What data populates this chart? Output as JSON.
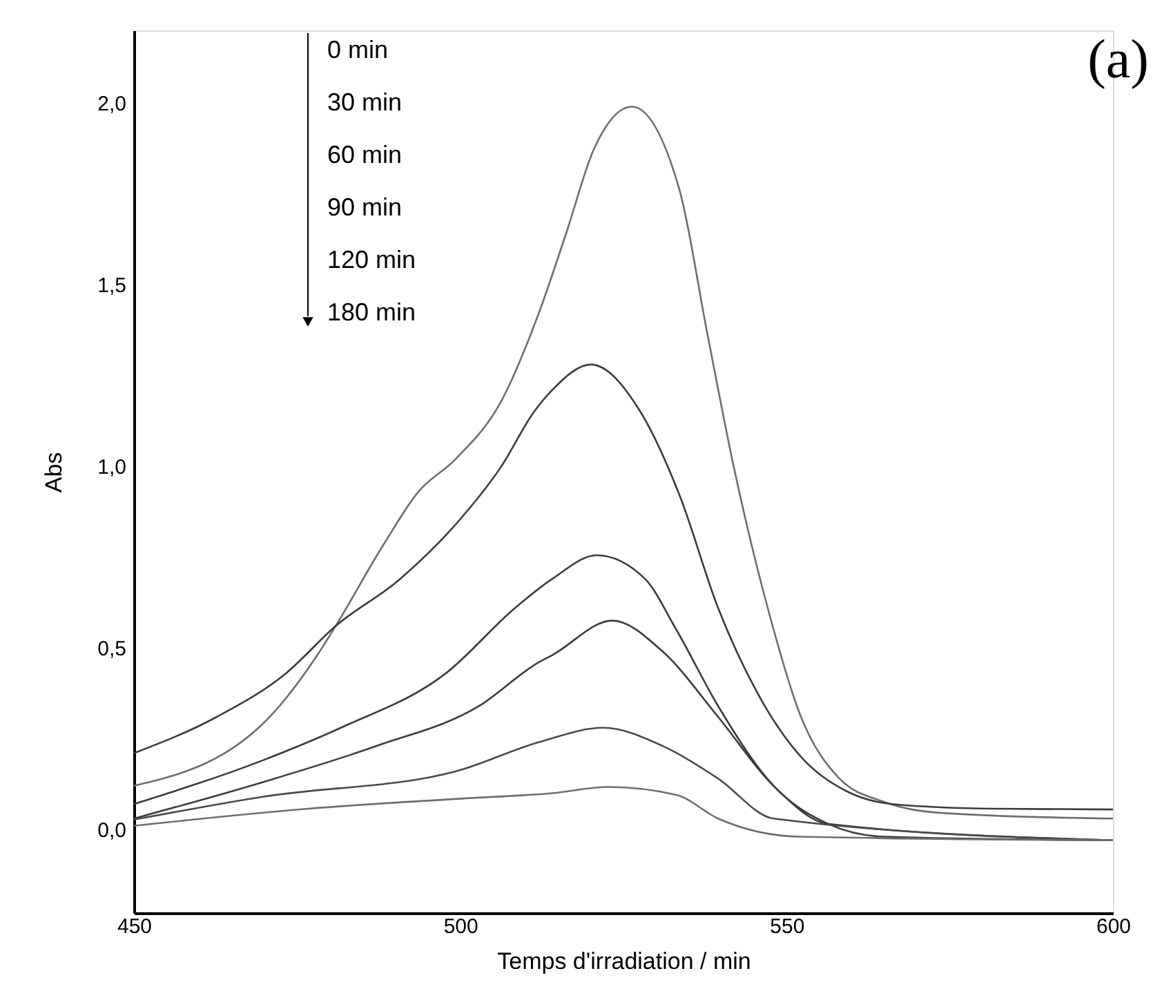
{
  "chart_data": {
    "type": "line",
    "title": "(a)",
    "xlabel": "Temps d'irradiation / min",
    "ylabel": "Abs",
    "annotations": [
      "0 min",
      "30 min",
      "60 min",
      "90 min",
      "120 min",
      "180 min"
    ],
    "xlim": [
      450,
      600
    ],
    "ylim": [
      -0.23,
      2.2
    ],
    "xticks": [
      450,
      500,
      550,
      600
    ],
    "yticks": [
      {
        "value": 0,
        "label": "0,0"
      },
      {
        "value": 0.5,
        "label": "0,5"
      },
      {
        "value": 1.0,
        "label": "1,0"
      },
      {
        "value": 1.5,
        "label": "1,5"
      },
      {
        "value": 2.0,
        "label": "2,0"
      }
    ],
    "grid": false,
    "series": [
      {
        "color": "#6e6e6e",
        "x": [
          450,
          469.7,
          478.1,
          480.9,
          488.1,
          493.6,
          499.3,
          506.3,
          512,
          516.2,
          520.4,
          526.3,
          533.6,
          537.8,
          542,
          547.1,
          552.2,
          558.1,
          564.9,
          573.3,
          600
        ],
        "values": [
          0.12,
          0.29,
          0.48,
          0.56,
          0.78,
          0.93,
          1.02,
          1.18,
          1.42,
          1.64,
          1.87,
          1.99,
          1.76,
          1.37,
          0.99,
          0.61,
          0.31,
          0.14,
          0.076,
          0.046,
          0.03
        ]
      },
      {
        "color": "#3c3c3c",
        "x": [
          450,
          462.7,
          473.3,
          480.9,
          490.8,
          499.3,
          506.3,
          511.3,
          514.1,
          520,
          527.6,
          533.6,
          539.5,
          545.4,
          552.2,
          559,
          566.6,
          581.8,
          600
        ],
        "values": [
          0.21,
          0.31,
          0.43,
          0.56,
          0.69,
          0.84,
          1.0,
          1.15,
          1.21,
          1.28,
          1.15,
          0.92,
          0.61,
          0.38,
          0.2,
          0.107,
          0.069,
          0.057,
          0.055
        ]
      },
      {
        "color": "#3c3c3c",
        "x": [
          450,
          469.7,
          481.7,
          497.8,
          508.4,
          514.1,
          520.9,
          528.3,
          533.1,
          539.5,
          548,
          556.4,
          564.9,
          600
        ],
        "values": [
          0.07,
          0.19,
          0.28,
          0.43,
          0.61,
          0.69,
          0.755,
          0.69,
          0.55,
          0.34,
          0.12,
          0.015,
          -0.02,
          -0.03
        ]
      },
      {
        "color": "#3c3c3c",
        "x": [
          450,
          469.7,
          487.2,
          502.9,
          512,
          514.1,
          523.3,
          531,
          539.5,
          548,
          556.4,
          600
        ],
        "values": [
          0.03,
          0.13,
          0.23,
          0.34,
          0.46,
          0.48,
          0.575,
          0.49,
          0.31,
          0.12,
          0.015,
          -0.03
        ]
      },
      {
        "color": "#4a4a4a",
        "x": [
          450,
          469.7,
          499.3,
          512,
          521.9,
          531,
          539.5,
          548,
          600
        ],
        "values": [
          0.027,
          0.09,
          0.16,
          0.24,
          0.28,
          0.23,
          0.14,
          0.03,
          -0.03
        ]
      },
      {
        "color": "#6e6e6e",
        "x": [
          450,
          476.7,
          499.3,
          514.1,
          522.7,
          533.1,
          539.5,
          552,
          600
        ],
        "values": [
          0.01,
          0.057,
          0.084,
          0.1,
          0.117,
          0.095,
          0.03,
          -0.02,
          -0.03
        ]
      }
    ]
  }
}
